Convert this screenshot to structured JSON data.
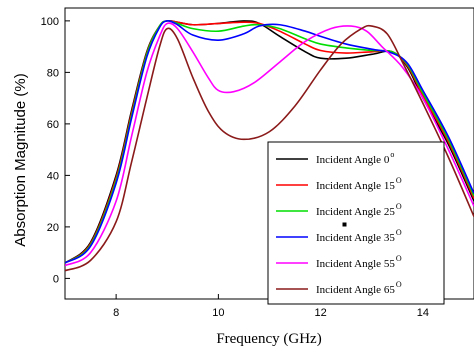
{
  "chart_data": {
    "type": "line",
    "title": "",
    "xlabel": "Frequency (GHz)",
    "ylabel": "Absorption Magnitude (%)",
    "xlim": [
      7,
      15
    ],
    "ylim": [
      -8,
      105
    ],
    "xticks": [
      8,
      10,
      12,
      14
    ],
    "yticks": [
      0,
      20,
      40,
      60,
      80,
      100
    ],
    "grid": false,
    "legend_position": "bottom-right",
    "series": [
      {
        "name": "Incident Angle 0",
        "label_main": "Incident Angle 0",
        "label_sup": "o",
        "color": "#000000",
        "x": [
          7.0,
          7.5,
          8.0,
          8.3,
          8.6,
          8.85,
          9.0,
          9.2,
          9.5,
          10.0,
          10.5,
          10.8,
          11.2,
          11.7,
          12.0,
          12.5,
          13.0,
          13.4,
          13.7,
          14.0,
          14.5,
          15.0
        ],
        "y": [
          6,
          14,
          40,
          65,
          88,
          98,
          100,
          99.5,
          98.5,
          99,
          100,
          99,
          94,
          88,
          85.5,
          85.5,
          87,
          88,
          82,
          70,
          52,
          30
        ]
      },
      {
        "name": "Incident Angle 15",
        "label_main": "Incident Angle 15",
        "label_sup": "O",
        "color": "#ff0000",
        "x": [
          7.0,
          7.5,
          8.0,
          8.3,
          8.6,
          8.85,
          9.0,
          9.2,
          9.5,
          10.0,
          10.5,
          10.8,
          11.2,
          11.7,
          12.0,
          12.5,
          13.0,
          13.4,
          13.7,
          14.0,
          14.5,
          15.0
        ],
        "y": [
          6,
          13.5,
          39,
          64,
          87.5,
          98,
          100,
          99.5,
          98.5,
          99,
          99.5,
          99,
          96,
          91,
          88.5,
          87.5,
          88,
          88,
          82.5,
          71,
          53,
          31
        ]
      },
      {
        "name": "Incident Angle 25",
        "label_main": "Incident Angle 25",
        "label_sup": "O",
        "color": "#00dd00",
        "x": [
          7.0,
          7.5,
          8.0,
          8.3,
          8.6,
          8.85,
          9.0,
          9.2,
          9.5,
          10.0,
          10.5,
          10.8,
          11.2,
          11.7,
          12.0,
          12.5,
          13.0,
          13.4,
          13.7,
          14.0,
          14.5,
          15.0
        ],
        "y": [
          6,
          13,
          38,
          63,
          87,
          98,
          100,
          99,
          97,
          96,
          98,
          98.5,
          97,
          93,
          91,
          89.5,
          88.5,
          88,
          83,
          72,
          54,
          32
        ]
      },
      {
        "name": "Incident Angle 35",
        "label_main": "Incident Angle 35",
        "label_sup": "O",
        "color": "#0000ff",
        "x": [
          7.0,
          7.5,
          8.0,
          8.3,
          8.6,
          8.85,
          9.0,
          9.2,
          9.5,
          10.0,
          10.5,
          10.8,
          11.2,
          11.7,
          12.0,
          12.5,
          13.0,
          13.4,
          13.7,
          14.0,
          14.5,
          15.0
        ],
        "y": [
          6,
          12.5,
          37,
          62,
          86,
          97.5,
          100,
          98.5,
          94.5,
          92.5,
          95,
          98,
          98.5,
          96,
          94,
          91,
          89,
          87.5,
          83.5,
          73,
          55,
          33
        ]
      },
      {
        "name": "Incident Angle 55",
        "label_main": "Incident Angle 55",
        "label_sup": "O",
        "color": "#ff00ff",
        "x": [
          7.0,
          7.5,
          8.0,
          8.3,
          8.6,
          8.85,
          9.0,
          9.2,
          9.5,
          9.8,
          10.0,
          10.3,
          10.7,
          11.2,
          11.7,
          12.2,
          12.6,
          12.9,
          13.2,
          13.6,
          14.0,
          14.5,
          15.0
        ],
        "y": [
          5,
          10,
          30,
          55,
          80,
          94,
          99,
          97,
          88,
          78,
          73,
          72.5,
          76,
          84,
          92,
          97,
          98,
          96,
          90,
          82,
          70,
          50,
          28
        ]
      },
      {
        "name": "Incident Angle 65",
        "label_main": "Incident Angle 65",
        "label_sup": "O",
        "color": "#8b1a1a",
        "x": [
          7.0,
          7.5,
          8.0,
          8.3,
          8.6,
          8.85,
          9.0,
          9.2,
          9.5,
          9.8,
          10.1,
          10.5,
          11.0,
          11.5,
          12.0,
          12.4,
          12.8,
          13.0,
          13.3,
          13.6,
          14.0,
          14.5,
          15.0
        ],
        "y": [
          3,
          7,
          22,
          45,
          70,
          90,
          97,
          93,
          78,
          65,
          57,
          54,
          57,
          67,
          81,
          91,
          97,
          98,
          95,
          84,
          68,
          47,
          24
        ]
      }
    ]
  }
}
